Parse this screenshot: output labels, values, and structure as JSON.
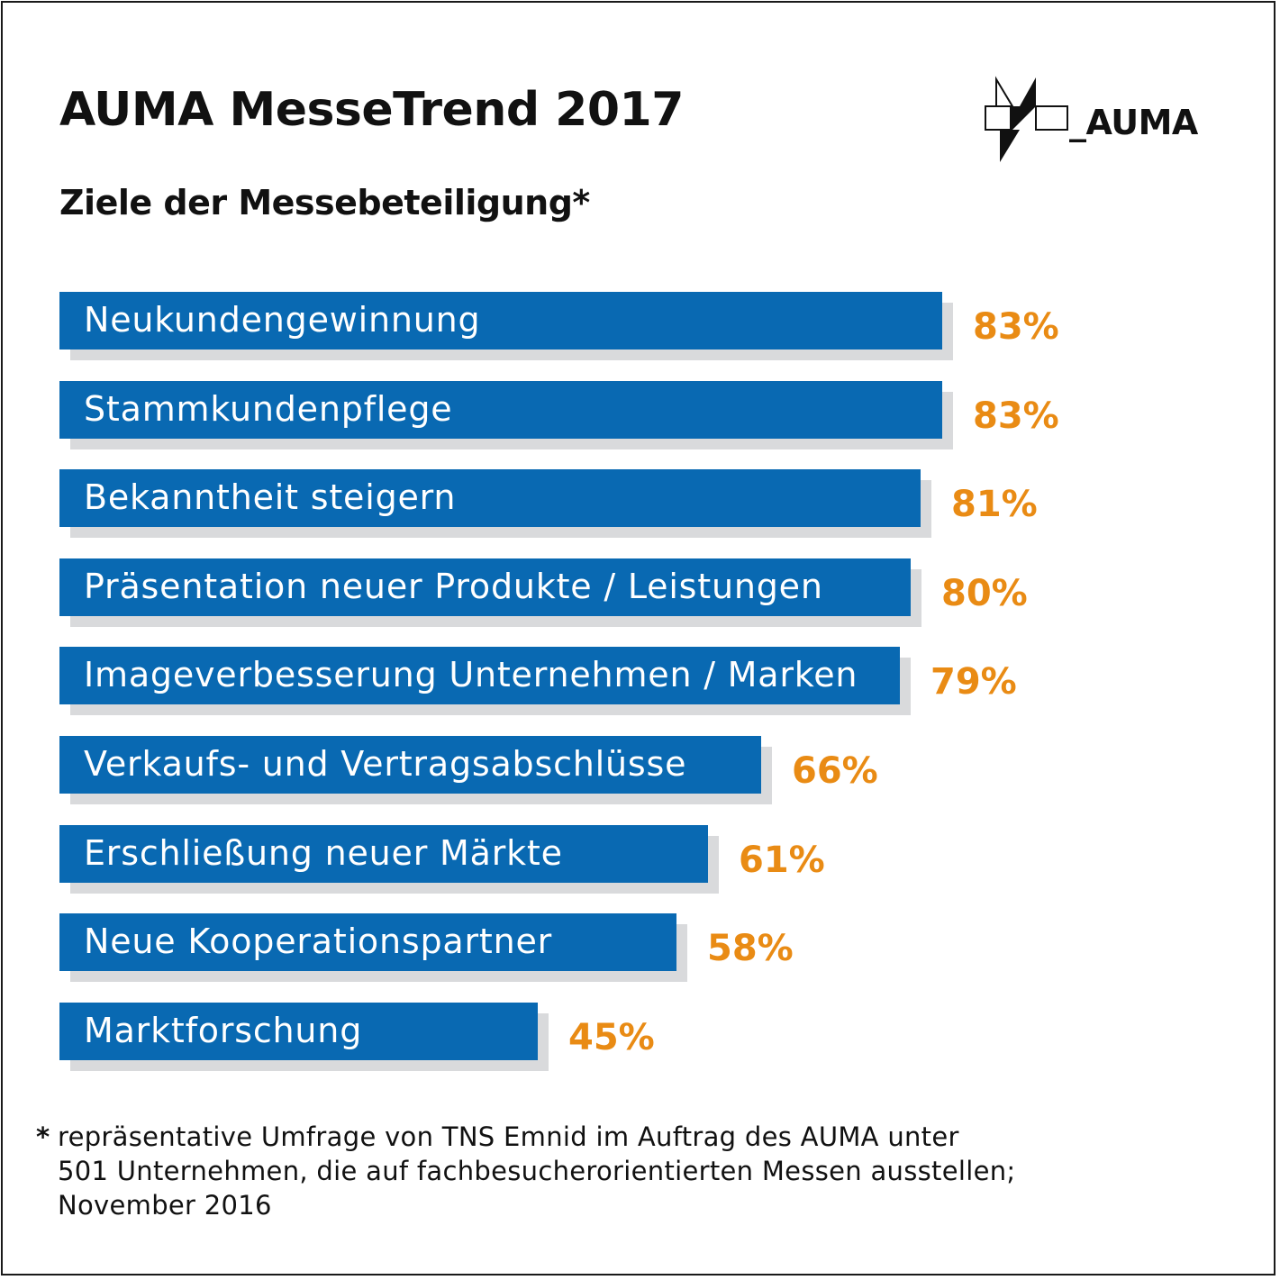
{
  "title": "AUMA MesseTrend 2017",
  "subtitle": "Ziele der Messebeteiligung*",
  "logo": {
    "text": "_AUMA",
    "icon": "auma-logo-mark"
  },
  "colors": {
    "bar": "#0969b2",
    "value": "#e98b14",
    "shadow": "#d9dadc",
    "text": "#111111"
  },
  "chart_data": {
    "type": "bar",
    "orientation": "horizontal",
    "categories": [
      "Neukundengewinnung",
      "Stammkundenpflege",
      "Bekanntheit steigern",
      "Präsentation neuer Produkte / Leistungen",
      "Imageverbesserung Unternehmen / Marken",
      "Verkaufs- und Vertragsabschlüsse",
      "Erschließung neuer Märkte",
      "Neue Kooperationspartner",
      "Marktforschung"
    ],
    "values": [
      83,
      83,
      81,
      80,
      79,
      66,
      61,
      58,
      45
    ],
    "value_labels": [
      "83%",
      "83%",
      "81%",
      "80%",
      "79%",
      "66%",
      "61%",
      "58%",
      "45%"
    ],
    "unit": "%",
    "title": "Ziele der Messebeteiligung*",
    "grid": false,
    "legend": "none"
  },
  "footnote": {
    "star": "*",
    "lines": [
      "repräsentative Umfrage von TNS Emnid im Auftrag des AUMA unter",
      "501 Unternehmen, die auf fachbesucherorientierten Messen ausstellen;",
      "November 2016"
    ]
  }
}
